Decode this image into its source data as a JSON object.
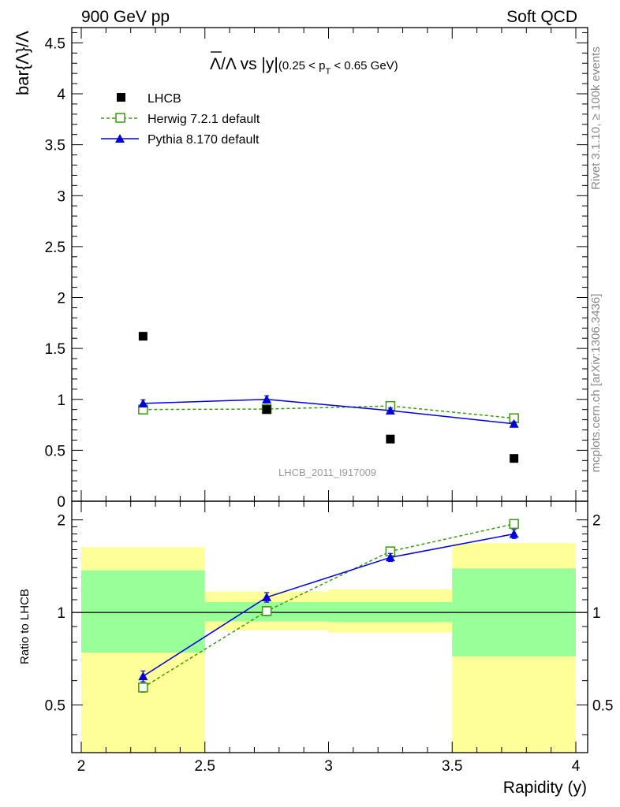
{
  "header": {
    "left": "900 GeV pp",
    "right": "Soft QCD"
  },
  "side_text": {
    "rivet": "Rivet 3.1.10, ≥ 100k events",
    "mcplots": "mcplots.cern.ch [arXiv:1306.3436]"
  },
  "watermark": "LHCB_2011_I917009",
  "colors": {
    "lhcb": "#000000",
    "herwig": "#3a9a0a",
    "pythia": "#0000dd",
    "band_outer": "#ffff99",
    "band_inner": "#99ff99"
  },
  "chart_data": [
    {
      "type": "scatter",
      "title": {
        "lambda_bar": "Λ",
        "rest": "/Λ vs |y|",
        "cut_prefix": "(0.25 < p",
        "cut_sub": "T",
        "cut_suffix": " < 0.65 GeV)"
      },
      "ylabel": "bar{Λ}/Λ",
      "xlim": [
        2,
        4
      ],
      "ylim": [
        0,
        4.65
      ],
      "yticks": [
        "0",
        "0.5",
        "1",
        "1.5",
        "2",
        "2.5",
        "3",
        "3.5",
        "4",
        "4.5"
      ],
      "legend": {
        "placement": "top-left",
        "entries": [
          "LHCB",
          "Herwig 7.2.1 default",
          "Pythia 8.170 default"
        ]
      },
      "series": [
        {
          "name": "LHCB",
          "x": [
            2.25,
            2.75,
            3.25,
            3.75
          ],
          "y": [
            1.62,
            0.9,
            0.61,
            0.42
          ],
          "marker": "square-filled"
        },
        {
          "name": "Herwig 7.2.1 default",
          "x": [
            2.25,
            2.75,
            3.25,
            3.75
          ],
          "y": [
            0.9,
            0.905,
            0.935,
            0.815
          ],
          "err": [
            0.02,
            0.025,
            0.025,
            0.03
          ],
          "marker": "square-open",
          "line": "dashed"
        },
        {
          "name": "Pythia 8.170 default",
          "x": [
            2.25,
            2.75,
            3.25,
            3.75
          ],
          "y": [
            0.96,
            1.0,
            0.89,
            0.76
          ],
          "err": [
            0.035,
            0.035,
            0.025,
            0.02
          ],
          "marker": "triangle-filled",
          "line": "solid"
        }
      ]
    },
    {
      "type": "scatter",
      "ylabel": "Ratio to LHCB",
      "xlabel": "Rapidity (y)",
      "xlim": [
        2,
        4
      ],
      "ylim": [
        0.35,
        2.3
      ],
      "xticks": [
        "2",
        "2.5",
        "3",
        "3.5",
        "4"
      ],
      "yticks": [
        "0.5",
        "1",
        "2"
      ],
      "log_y": true,
      "bands": [
        {
          "x": [
            2.0,
            2.5
          ],
          "outer": [
            0.35,
            1.63
          ],
          "inner": [
            0.74,
            1.37
          ]
        },
        {
          "x": [
            2.5,
            3.0
          ],
          "outer": [
            0.875,
            1.17
          ],
          "inner": [
            0.935,
            1.08
          ]
        },
        {
          "x": [
            3.0,
            3.5
          ],
          "outer": [
            0.86,
            1.19
          ],
          "inner": [
            0.93,
            1.08
          ]
        },
        {
          "x": [
            3.5,
            4.0
          ],
          "outer": [
            0.35,
            1.68
          ],
          "inner": [
            0.72,
            1.39
          ]
        }
      ],
      "series": [
        {
          "name": "Herwig 7.2.1 default",
          "x": [
            2.25,
            2.75,
            3.25,
            3.75
          ],
          "y": [
            0.57,
            1.01,
            1.58,
            1.94
          ],
          "err": [
            0.02,
            0.035,
            0.045,
            0.06
          ],
          "marker": "square-open",
          "line": "dashed"
        },
        {
          "name": "Pythia 8.170 default",
          "x": [
            2.25,
            2.75,
            3.25,
            3.75
          ],
          "y": [
            0.62,
            1.12,
            1.51,
            1.8
          ],
          "err": [
            0.025,
            0.04,
            0.045,
            0.06
          ],
          "marker": "triangle-filled",
          "line": "solid"
        }
      ]
    }
  ]
}
